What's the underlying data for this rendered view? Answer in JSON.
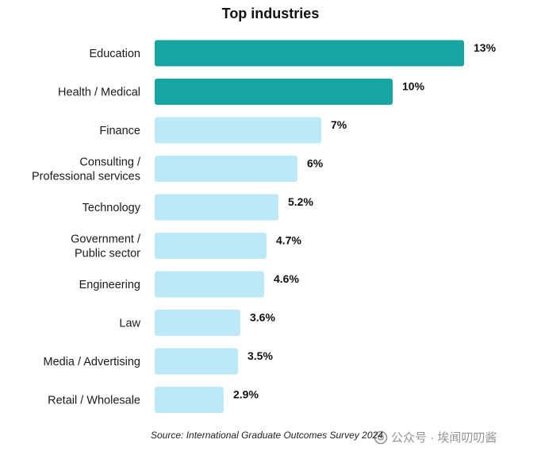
{
  "chart_data": {
    "type": "bar",
    "orientation": "horizontal",
    "title": "Top industries",
    "categories": [
      [
        "Education"
      ],
      [
        "Health / Medical"
      ],
      [
        "Finance"
      ],
      [
        "Consulting /",
        "Professional services"
      ],
      [
        "Technology"
      ],
      [
        "Government /",
        "Public sector"
      ],
      [
        "Engineering"
      ],
      [
        "Law"
      ],
      [
        "Media / Advertising"
      ],
      [
        "Retail / Wholesale"
      ]
    ],
    "values": [
      13,
      10,
      7,
      6,
      5.2,
      4.7,
      4.6,
      3.6,
      3.5,
      2.9
    ],
    "value_labels": [
      "13%",
      "10%",
      "7%",
      "6%",
      "5.2%",
      "4.7%",
      "4.6%",
      "3.6%",
      "3.5%",
      "2.9%"
    ],
    "highlight_count": 2,
    "colors": {
      "highlight": "#17a5a3",
      "default": "#bce9f7"
    },
    "xlim": [
      0,
      13
    ],
    "grid": false,
    "legend": "none"
  },
  "source": "Source: International Graduate Outcomes Survey 2024",
  "watermark": {
    "text": "公众号 · 埃闻叨叨酱",
    "icon": "wechat-official-account-icon"
  }
}
